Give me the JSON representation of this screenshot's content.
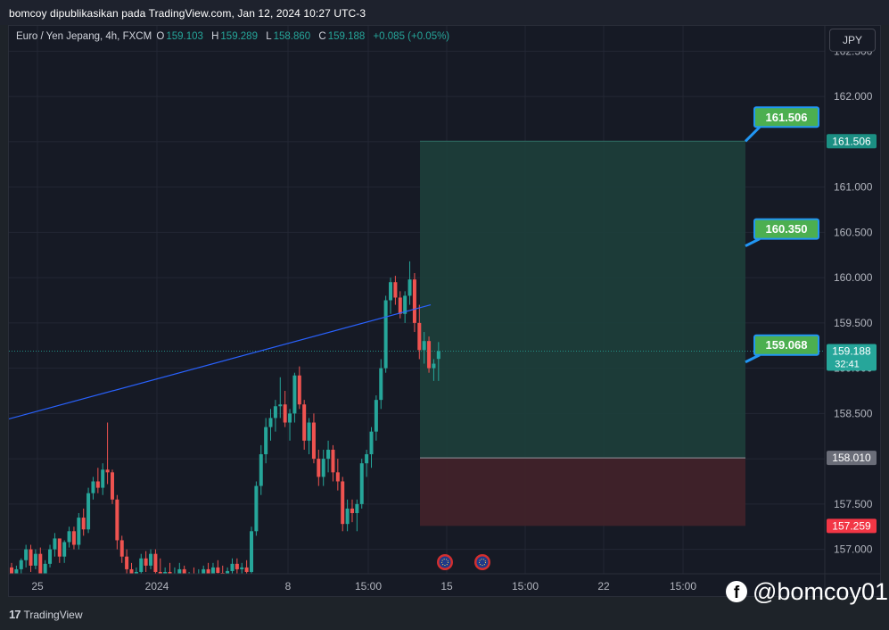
{
  "header": {
    "publisher": "bomcoy dipublikasikan pada TradingView.com, Jan 12, 2024 10:27 UTC-3"
  },
  "legend": {
    "symbol": "Euro / Yen Jepang, 4h, FXCM",
    "open_key": "O",
    "open_val": "159.103",
    "high_key": "H",
    "high_val": "159.289",
    "low_key": "L",
    "low_val": "158.860",
    "close_key": "C",
    "close_val": "159.188",
    "change": "+0.085 (+0.05%)"
  },
  "currency_button": "JPY",
  "footer": {
    "brand": "TradingView"
  },
  "watermark": {
    "icon": "facebook-icon",
    "handle": "@bomcoy01"
  },
  "colors": {
    "up": "#26a69a",
    "down": "#ef5350",
    "trendline": "#2962ff",
    "target_zone": "#1d3f3b",
    "stop_zone": "#402229",
    "label_fill": "#4caf50",
    "label_border": "#2196f3"
  },
  "chart_data": {
    "type": "candlestick",
    "symbol": "EURJPY",
    "timeframe": "4h",
    "ylim": [
      156.73,
      162.78
    ],
    "y_ticks": [
      "157.000",
      "157.500",
      "158.000",
      "158.500",
      "159.000",
      "159.500",
      "160.000",
      "160.500",
      "161.000",
      "161.500",
      "162.000",
      "162.500"
    ],
    "x_ticks": [
      "25",
      "2024",
      "8",
      "15:00",
      "15",
      "15:00",
      "22",
      "15:00"
    ],
    "candles": [
      [
        156.8,
        156.85,
        156.62,
        156.7
      ],
      [
        156.7,
        156.82,
        156.6,
        156.78
      ],
      [
        156.78,
        156.9,
        156.7,
        156.88
      ],
      [
        156.88,
        157.05,
        156.8,
        157.0
      ],
      [
        157.0,
        157.05,
        156.75,
        156.82
      ],
      [
        156.82,
        157.0,
        156.78,
        156.95
      ],
      [
        156.95,
        157.02,
        156.65,
        156.7
      ],
      [
        156.7,
        156.88,
        156.55,
        156.84
      ],
      [
        156.84,
        157.05,
        156.8,
        157.0
      ],
      [
        157.0,
        157.18,
        156.92,
        157.12
      ],
      [
        157.12,
        157.1,
        156.85,
        156.92
      ],
      [
        156.92,
        157.1,
        156.85,
        157.08
      ],
      [
        157.08,
        157.25,
        157.02,
        157.2
      ],
      [
        157.2,
        157.25,
        157.0,
        157.05
      ],
      [
        157.05,
        157.4,
        157.0,
        157.35
      ],
      [
        157.35,
        157.45,
        157.15,
        157.22
      ],
      [
        157.22,
        157.68,
        157.18,
        157.62
      ],
      [
        157.62,
        157.8,
        157.55,
        157.75
      ],
      [
        157.75,
        157.9,
        157.62,
        157.68
      ],
      [
        157.68,
        157.95,
        157.6,
        157.88
      ],
      [
        157.88,
        158.4,
        157.72,
        157.85
      ],
      [
        157.85,
        157.88,
        157.5,
        157.55
      ],
      [
        157.55,
        157.6,
        157.0,
        157.1
      ],
      [
        157.1,
        157.15,
        156.85,
        156.92
      ],
      [
        156.92,
        157.0,
        156.7,
        156.78
      ],
      [
        156.78,
        156.85,
        156.6,
        156.65
      ],
      [
        156.65,
        156.8,
        156.58,
        156.75
      ],
      [
        156.75,
        156.95,
        156.7,
        156.9
      ],
      [
        156.9,
        156.98,
        156.75,
        156.82
      ],
      [
        156.82,
        157.0,
        156.78,
        156.95
      ],
      [
        156.95,
        157.0,
        156.7,
        156.75
      ],
      [
        156.75,
        156.9,
        156.6,
        156.65
      ],
      [
        156.65,
        156.8,
        156.55,
        156.75
      ],
      [
        156.75,
        156.85,
        156.6,
        156.68
      ],
      [
        156.68,
        156.8,
        156.55,
        156.72
      ],
      [
        156.72,
        156.85,
        156.6,
        156.78
      ],
      [
        156.78,
        156.82,
        156.55,
        156.62
      ],
      [
        156.62,
        156.75,
        156.55,
        156.7
      ],
      [
        156.7,
        156.8,
        156.6,
        156.65
      ],
      [
        156.65,
        156.78,
        156.55,
        156.7
      ],
      [
        156.7,
        156.82,
        156.62,
        156.78
      ],
      [
        156.78,
        156.85,
        156.65,
        156.72
      ],
      [
        156.72,
        156.85,
        156.68,
        156.8
      ],
      [
        156.8,
        156.88,
        156.7,
        156.74
      ],
      [
        156.74,
        156.82,
        156.6,
        156.7
      ],
      [
        156.7,
        156.8,
        156.62,
        156.76
      ],
      [
        156.76,
        156.9,
        156.7,
        156.84
      ],
      [
        156.84,
        156.9,
        156.72,
        156.78
      ],
      [
        156.78,
        156.85,
        156.68,
        156.8
      ],
      [
        156.8,
        156.88,
        156.7,
        156.75
      ],
      [
        156.75,
        157.25,
        156.72,
        157.2
      ],
      [
        157.2,
        157.75,
        157.15,
        157.7
      ],
      [
        157.7,
        158.15,
        157.6,
        158.05
      ],
      [
        158.05,
        158.45,
        157.95,
        158.35
      ],
      [
        158.35,
        158.55,
        158.2,
        158.45
      ],
      [
        158.45,
        158.65,
        158.3,
        158.58
      ],
      [
        158.58,
        158.9,
        158.45,
        158.6
      ],
      [
        158.6,
        158.75,
        158.35,
        158.4
      ],
      [
        158.4,
        158.55,
        158.2,
        158.5
      ],
      [
        158.5,
        158.95,
        158.4,
        158.92
      ],
      [
        158.92,
        159.02,
        158.55,
        158.6
      ],
      [
        158.6,
        158.65,
        158.1,
        158.2
      ],
      [
        158.2,
        158.45,
        158.05,
        158.4
      ],
      [
        158.4,
        158.5,
        157.95,
        158.0
      ],
      [
        158.0,
        158.1,
        157.7,
        157.8
      ],
      [
        157.8,
        158.1,
        157.7,
        158.0
      ],
      [
        158.0,
        158.2,
        157.85,
        158.1
      ],
      [
        158.1,
        158.15,
        157.75,
        157.85
      ],
      [
        157.85,
        158.0,
        157.65,
        157.75
      ],
      [
        157.75,
        157.8,
        157.2,
        157.28
      ],
      [
        157.28,
        157.55,
        157.2,
        157.45
      ],
      [
        157.45,
        157.55,
        157.3,
        157.4
      ],
      [
        157.4,
        157.55,
        157.2,
        157.5
      ],
      [
        157.5,
        158.0,
        157.45,
        157.95
      ],
      [
        157.95,
        158.1,
        157.8,
        158.05
      ],
      [
        158.05,
        158.35,
        157.9,
        158.3
      ],
      [
        158.3,
        158.7,
        158.2,
        158.65
      ],
      [
        158.65,
        159.1,
        158.55,
        159.0
      ],
      [
        159.0,
        159.8,
        158.95,
        159.75
      ],
      [
        159.75,
        160.0,
        159.6,
        159.95
      ],
      [
        159.95,
        160.02,
        159.7,
        159.78
      ],
      [
        159.78,
        159.85,
        159.55,
        159.6
      ],
      [
        159.6,
        159.85,
        159.5,
        159.8
      ],
      [
        159.8,
        160.18,
        159.7,
        159.98
      ],
      [
        159.98,
        160.05,
        159.4,
        159.5
      ],
      [
        159.5,
        159.7,
        159.1,
        159.2
      ],
      [
        159.2,
        159.4,
        159.05,
        159.3
      ],
      [
        159.3,
        159.35,
        158.95,
        159.0
      ],
      [
        159.0,
        159.1,
        158.86,
        159.05
      ],
      [
        159.103,
        159.289,
        158.86,
        159.188
      ]
    ],
    "current_price": 159.188,
    "countdown": "32:41",
    "position": {
      "target": 161.506,
      "entry": 158.01,
      "stop": 157.259,
      "target_label": "161.506",
      "entry_label": "158.010",
      "stop_label": "157.259"
    },
    "annotations": [
      "161.506",
      "160.350",
      "159.068"
    ],
    "trendline": {
      "from": 158.44,
      "to": 159.7
    }
  }
}
